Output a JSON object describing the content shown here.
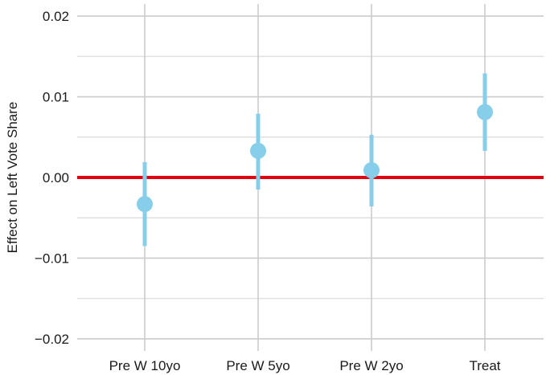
{
  "chart_data": {
    "type": "scatter",
    "title": "",
    "xlabel": "",
    "ylabel": "Effect on Left Vote Share",
    "categories": [
      "Pre W 10yo",
      "Pre W 5yo",
      "Pre W 2yo",
      "Treat"
    ],
    "series": [
      {
        "estimates": [
          -0.0033,
          0.0033,
          0.0009,
          0.0081
        ],
        "ci_low": [
          -0.0085,
          -0.0015,
          -0.0036,
          0.0033
        ],
        "ci_high": [
          0.0019,
          0.0079,
          0.0053,
          0.0129
        ]
      }
    ],
    "ylim": [
      -0.0215,
      0.0215
    ],
    "yticks": [
      -0.02,
      -0.01,
      0.0,
      0.01,
      0.02
    ],
    "ytick_labels": [
      "−0.02",
      "−0.01",
      "0.00",
      "0.01",
      "0.02"
    ],
    "grid": true,
    "reference_line": {
      "y": 0,
      "color": "#e3000f"
    },
    "colors": {
      "point": "#87ceeb",
      "grid": "#cccccc",
      "reference": "#e3000f"
    }
  }
}
